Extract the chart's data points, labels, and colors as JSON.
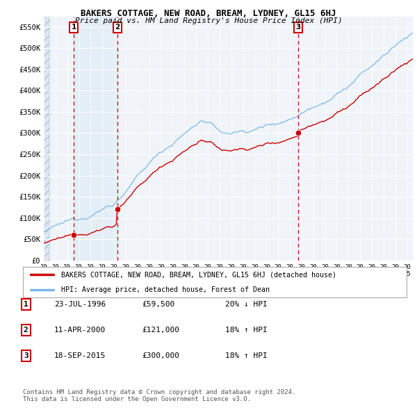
{
  "title": "BAKERS COTTAGE, NEW ROAD, BREAM, LYDNEY, GL15 6HJ",
  "subtitle": "Price paid vs. HM Land Registry's House Price Index (HPI)",
  "ylim": [
    0,
    575000
  ],
  "xlim_start": 1994.0,
  "xlim_end": 2025.5,
  "sale_dates": [
    1996.554,
    2000.274,
    2015.715
  ],
  "sale_prices": [
    59500,
    121000,
    300000
  ],
  "sale_labels": [
    "1",
    "2",
    "3"
  ],
  "hpi_color": "#7ab8e8",
  "price_color": "#cc0000",
  "marker_color": "#cc0000",
  "dashed_line_color": "#cc0000",
  "shaded_region_color": "#ddeaf7",
  "hatch_bg_color": "#d8e4f0",
  "legend_entries": [
    "BAKERS COTTAGE, NEW ROAD, BREAM, LYDNEY, GL15 6HJ (detached house)",
    "HPI: Average price, detached house, Forest of Dean"
  ],
  "table_rows": [
    [
      "1",
      "23-JUL-1996",
      "£59,500",
      "20% ↓ HPI"
    ],
    [
      "2",
      "11-APR-2000",
      "£121,000",
      "18% ↑ HPI"
    ],
    [
      "3",
      "18-SEP-2015",
      "£300,000",
      "18% ↑ HPI"
    ]
  ],
  "footnote": "Contains HM Land Registry data © Crown copyright and database right 2024.\nThis data is licensed under the Open Government Licence v3.0.",
  "bg_color": "#ffffff",
  "plot_bg_color": "#f0f4f8",
  "grid_color": "#d0d8e0"
}
